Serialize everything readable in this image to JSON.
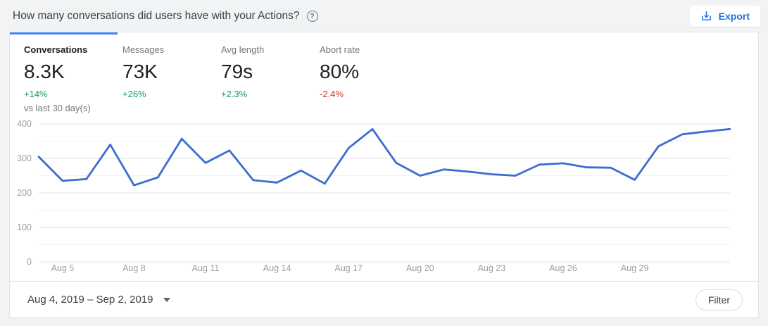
{
  "header": {
    "title": "How many conversations did users have with your Actions?",
    "help_glyph": "?",
    "export_label": "Export"
  },
  "tabs": [
    {
      "label": "Conversations",
      "value": "8.3K",
      "delta": "+14%",
      "delta_color": "#0f9d58",
      "active": true,
      "note": "vs last 30 day(s)"
    },
    {
      "label": "Messages",
      "value": "73K",
      "delta": "+26%",
      "delta_color": "#0f9d58",
      "active": false
    },
    {
      "label": "Avg length",
      "value": "79s",
      "delta": "+2.3%",
      "delta_color": "#0f9d58",
      "active": false
    },
    {
      "label": "Abort rate",
      "value": "80%",
      "delta": "-2.4%",
      "delta_color": "#d93025",
      "active": false
    }
  ],
  "footer": {
    "date_range": "Aug 4, 2019 – Sep 2, 2019",
    "filter_label": "Filter"
  },
  "colors": {
    "accent_blue": "#1a73e8",
    "tab_indicator": "#4285f4",
    "line": "#3b6dd0",
    "positive_green": "#0f9d58",
    "negative_red": "#d93025"
  },
  "chart_data": {
    "type": "line",
    "title": "",
    "xlabel": "",
    "ylabel": "",
    "x": [
      "Aug 4",
      "Aug 5",
      "Aug 6",
      "Aug 7",
      "Aug 8",
      "Aug 9",
      "Aug 10",
      "Aug 11",
      "Aug 12",
      "Aug 13",
      "Aug 14",
      "Aug 15",
      "Aug 16",
      "Aug 17",
      "Aug 18",
      "Aug 19",
      "Aug 20",
      "Aug 21",
      "Aug 22",
      "Aug 23",
      "Aug 24",
      "Aug 25",
      "Aug 26",
      "Aug 27",
      "Aug 28",
      "Aug 29",
      "Aug 30",
      "Aug 31",
      "Sep 1",
      "Sep 2"
    ],
    "series": [
      {
        "name": "Conversations",
        "values": [
          305,
          235,
          240,
          340,
          222,
          245,
          357,
          287,
          323,
          237,
          230,
          265,
          227,
          330,
          385,
          287,
          250,
          268,
          262,
          254,
          250,
          282,
          286,
          274,
          273,
          238,
          335,
          370,
          378,
          385
        ]
      }
    ],
    "x_tick_labels": [
      "Aug 5",
      "Aug 8",
      "Aug 11",
      "Aug 14",
      "Aug 17",
      "Aug 20",
      "Aug 23",
      "Aug 26",
      "Aug 29"
    ],
    "x_tick_start_index": 1,
    "x_tick_step": 3,
    "ylim": [
      0,
      400
    ],
    "y_tick_step": 100,
    "grid_minor_step": 50,
    "grid": true,
    "legend_position": "none",
    "line_color": "#3b6dd0"
  }
}
